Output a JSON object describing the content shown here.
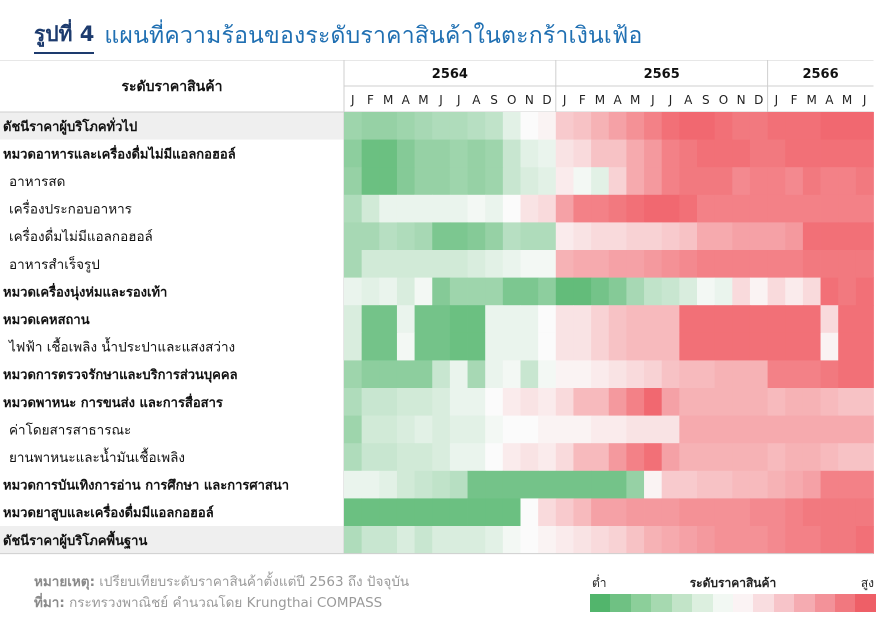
{
  "title": {
    "figure_label": "รูปที่ 4",
    "text": "แผนที่ความร้อนของระดับราคาสินค้าในตะกร้าเงินเฟ้อ"
  },
  "footnote": {
    "note_label": "หมายเหตุ:",
    "note_text": "เปรียบเทียบระดับราคาสินค้าตั้งแต่ปี 2563 ถึง ปัจจุบัน",
    "source_label": "ที่มา:",
    "source_text": "กระทรวงพาณิชย์ คำนวณโดย Krungthai COMPASS"
  },
  "legend": {
    "low": "ต่ำ",
    "title": "ระดับราคาสินค้า",
    "high": "สูง",
    "colors": [
      "#52b56c",
      "#6fc183",
      "#8ccf9a",
      "#a6d9b0",
      "#c2e4c8",
      "#dcefdf",
      "#f2f8f3",
      "#fbf3f4",
      "#f9dde0",
      "#f7c4c9",
      "#f5abb1",
      "#f39299",
      "#f1787f",
      "#ee5f67"
    ]
  },
  "chart_data": {
    "type": "heatmap",
    "row_header": "ระดับราคาสินค้า",
    "years": [
      {
        "label": "2564",
        "span": 12
      },
      {
        "label": "2565",
        "span": 12
      },
      {
        "label": "2566",
        "span": 6
      }
    ],
    "months": [
      "J",
      "F",
      "M",
      "A",
      "M",
      "J",
      "J",
      "A",
      "S",
      "O",
      "N",
      "D",
      "J",
      "F",
      "M",
      "A",
      "M",
      "J",
      "J",
      "A",
      "S",
      "O",
      "N",
      "D",
      "J",
      "F",
      "M",
      "A",
      "M",
      "J"
    ],
    "scale": [
      -1,
      1
    ],
    "rows": [
      {
        "label": "ดัชนีราคาผู้บริโภคทั่วไป",
        "bold": true,
        "indent": false,
        "values": [
          -0.55,
          -0.6,
          -0.6,
          -0.55,
          -0.5,
          -0.45,
          -0.45,
          -0.4,
          -0.35,
          -0.15,
          0.0,
          0.05,
          0.3,
          0.35,
          0.45,
          0.55,
          0.65,
          0.75,
          0.85,
          0.9,
          0.9,
          0.85,
          0.8,
          0.8,
          0.85,
          0.85,
          0.85,
          0.9,
          0.9,
          0.9
        ]
      },
      {
        "label": "หมวดอาหารและเครื่องดื่มไม่มีแอลกอฮอล์",
        "bold": true,
        "indent": false,
        "values": [
          -0.65,
          -0.85,
          -0.85,
          -0.7,
          -0.6,
          -0.6,
          -0.55,
          -0.6,
          -0.55,
          -0.3,
          -0.15,
          -0.1,
          0.15,
          0.2,
          0.35,
          0.35,
          0.5,
          0.6,
          0.75,
          0.8,
          0.85,
          0.85,
          0.85,
          0.8,
          0.8,
          0.85,
          0.85,
          0.85,
          0.85,
          0.85
        ]
      },
      {
        "label": "อาหารสด",
        "bold": false,
        "indent": true,
        "values": [
          -0.6,
          -0.85,
          -0.85,
          -0.7,
          -0.6,
          -0.6,
          -0.55,
          -0.6,
          -0.55,
          -0.3,
          -0.2,
          -0.15,
          0.1,
          -0.05,
          -0.15,
          0.25,
          0.5,
          0.6,
          0.75,
          0.8,
          0.8,
          0.8,
          0.7,
          0.75,
          0.75,
          0.7,
          0.8,
          0.75,
          0.75,
          0.8
        ]
      },
      {
        "label": "เครื่องประกอบอาหาร",
        "bold": false,
        "indent": true,
        "values": [
          -0.45,
          -0.25,
          -0.1,
          -0.1,
          -0.1,
          -0.1,
          -0.1,
          -0.05,
          -0.1,
          0.0,
          0.15,
          0.2,
          0.55,
          0.75,
          0.75,
          0.8,
          0.85,
          0.9,
          0.9,
          0.85,
          0.75,
          0.75,
          0.75,
          0.75,
          0.75,
          0.75,
          0.75,
          0.75,
          0.75,
          0.75
        ]
      },
      {
        "label": "เครื่องดื่มไม่มีแอลกอฮอล์",
        "bold": false,
        "indent": true,
        "values": [
          -0.5,
          -0.5,
          -0.4,
          -0.45,
          -0.5,
          -0.75,
          -0.75,
          -0.7,
          -0.6,
          -0.4,
          -0.45,
          -0.45,
          0.1,
          0.15,
          0.2,
          0.2,
          0.25,
          0.25,
          0.3,
          0.35,
          0.5,
          0.5,
          0.55,
          0.55,
          0.55,
          0.6,
          0.85,
          0.85,
          0.85,
          0.85
        ]
      },
      {
        "label": "อาหารสำเร็จรูป",
        "bold": false,
        "indent": true,
        "values": [
          -0.5,
          -0.25,
          -0.25,
          -0.25,
          -0.25,
          -0.25,
          -0.25,
          -0.2,
          -0.15,
          -0.1,
          -0.05,
          -0.05,
          0.45,
          0.5,
          0.5,
          0.55,
          0.55,
          0.6,
          0.65,
          0.7,
          0.75,
          0.75,
          0.75,
          0.75,
          0.75,
          0.75,
          0.8,
          0.8,
          0.8,
          0.8
        ]
      },
      {
        "label": "หมวดเครื่องนุ่งห่มและรองเท้า",
        "bold": true,
        "indent": false,
        "values": [
          -0.1,
          -0.15,
          -0.1,
          -0.2,
          -0.05,
          -0.7,
          -0.55,
          -0.55,
          -0.55,
          -0.75,
          -0.75,
          -0.65,
          -0.9,
          -0.9,
          -0.8,
          -0.7,
          -0.5,
          -0.35,
          -0.3,
          -0.2,
          -0.05,
          -0.1,
          0.2,
          0.05,
          0.2,
          0.1,
          0.2,
          0.85,
          0.8,
          0.85
        ]
      },
      {
        "label": "หมวดเคหสถาน",
        "bold": true,
        "indent": false,
        "values": [
          -0.2,
          -0.8,
          -0.8,
          -0.1,
          -0.8,
          -0.8,
          -0.85,
          -0.85,
          -0.1,
          -0.1,
          -0.1,
          0.0,
          0.15,
          0.15,
          0.25,
          0.35,
          0.4,
          0.4,
          0.4,
          0.85,
          0.85,
          0.85,
          0.85,
          0.85,
          0.85,
          0.85,
          0.85,
          0.2,
          0.85,
          0.85
        ]
      },
      {
        "label": "ไฟฟ้า เชื้อเพลิง น้ำประปาและแสงสว่าง",
        "bold": false,
        "indent": true,
        "values": [
          -0.2,
          -0.8,
          -0.8,
          -0.05,
          -0.8,
          -0.8,
          -0.85,
          -0.85,
          -0.1,
          -0.1,
          -0.1,
          0.0,
          0.15,
          0.15,
          0.25,
          0.35,
          0.4,
          0.4,
          0.4,
          0.85,
          0.85,
          0.85,
          0.85,
          0.85,
          0.85,
          0.85,
          0.85,
          0.05,
          0.85,
          0.85
        ]
      },
      {
        "label": "หมวดการตรวจรักษาและบริการส่วนบุคคล",
        "bold": true,
        "indent": false,
        "values": [
          -0.55,
          -0.65,
          -0.65,
          -0.65,
          -0.65,
          -0.3,
          -0.1,
          -0.5,
          -0.1,
          -0.05,
          -0.3,
          -0.05,
          0.05,
          0.05,
          0.1,
          0.15,
          0.2,
          0.25,
          0.35,
          0.4,
          0.4,
          0.45,
          0.45,
          0.45,
          0.75,
          0.75,
          0.75,
          0.8,
          0.85,
          0.85
        ]
      },
      {
        "label": "หมวดพาหนะ การขนส่ง และการสื่อสาร",
        "bold": true,
        "indent": false,
        "values": [
          -0.45,
          -0.3,
          -0.3,
          -0.25,
          -0.25,
          -0.2,
          -0.1,
          -0.1,
          0.0,
          0.1,
          0.15,
          0.1,
          0.2,
          0.4,
          0.4,
          0.6,
          0.75,
          0.9,
          0.55,
          0.45,
          0.45,
          0.45,
          0.45,
          0.45,
          0.4,
          0.45,
          0.45,
          0.4,
          0.35,
          0.35
        ]
      },
      {
        "label": "ค่าโดยสารสาธารณะ",
        "bold": false,
        "indent": true,
        "values": [
          -0.55,
          -0.25,
          -0.25,
          -0.2,
          -0.15,
          -0.2,
          -0.15,
          -0.15,
          -0.05,
          0.0,
          0.0,
          0.05,
          0.05,
          0.05,
          0.1,
          0.1,
          0.15,
          0.15,
          0.15,
          0.5,
          0.5,
          0.5,
          0.5,
          0.5,
          0.5,
          0.5,
          0.5,
          0.5,
          0.5,
          0.5
        ]
      },
      {
        "label": "ยานพาหนะและน้ำมันเชื้อเพลิง",
        "bold": false,
        "indent": true,
        "values": [
          -0.45,
          -0.3,
          -0.3,
          -0.25,
          -0.25,
          -0.2,
          -0.1,
          -0.1,
          0.0,
          0.1,
          0.15,
          0.1,
          0.2,
          0.4,
          0.4,
          0.6,
          0.75,
          0.85,
          0.55,
          0.45,
          0.45,
          0.45,
          0.45,
          0.45,
          0.4,
          0.45,
          0.45,
          0.4,
          0.35,
          0.35
        ]
      },
      {
        "label": "หมวดการบันเทิงการอ่าน การศึกษา และการศาสนา",
        "bold": true,
        "indent": false,
        "values": [
          -0.1,
          -0.1,
          -0.15,
          -0.25,
          -0.3,
          -0.35,
          -0.4,
          -0.8,
          -0.8,
          -0.8,
          -0.8,
          -0.8,
          -0.8,
          -0.8,
          -0.8,
          -0.8,
          -0.6,
          0.05,
          0.3,
          0.3,
          0.35,
          0.35,
          0.4,
          0.4,
          0.45,
          0.5,
          0.55,
          0.75,
          0.75,
          0.75
        ]
      },
      {
        "label": "หมวดยาสูบและเครื่องดื่มมีแอลกอฮอล์",
        "bold": true,
        "indent": false,
        "values": [
          -0.85,
          -0.85,
          -0.85,
          -0.85,
          -0.85,
          -0.85,
          -0.85,
          -0.85,
          -0.85,
          -0.85,
          0.0,
          0.2,
          0.3,
          0.4,
          0.55,
          0.55,
          0.6,
          0.6,
          0.6,
          0.65,
          0.65,
          0.65,
          0.65,
          0.7,
          0.7,
          0.75,
          0.8,
          0.8,
          0.8,
          0.8
        ]
      },
      {
        "label": "ดัชนีราคาผู้บริโภคพื้นฐาน",
        "bold": true,
        "indent": false,
        "values": [
          -0.45,
          -0.3,
          -0.3,
          -0.2,
          -0.3,
          -0.2,
          -0.2,
          -0.2,
          -0.15,
          -0.05,
          0.0,
          0.05,
          0.1,
          0.15,
          0.2,
          0.25,
          0.35,
          0.45,
          0.5,
          0.55,
          0.6,
          0.65,
          0.65,
          0.65,
          0.7,
          0.75,
          0.75,
          0.8,
          0.8,
          0.85
        ]
      }
    ]
  }
}
